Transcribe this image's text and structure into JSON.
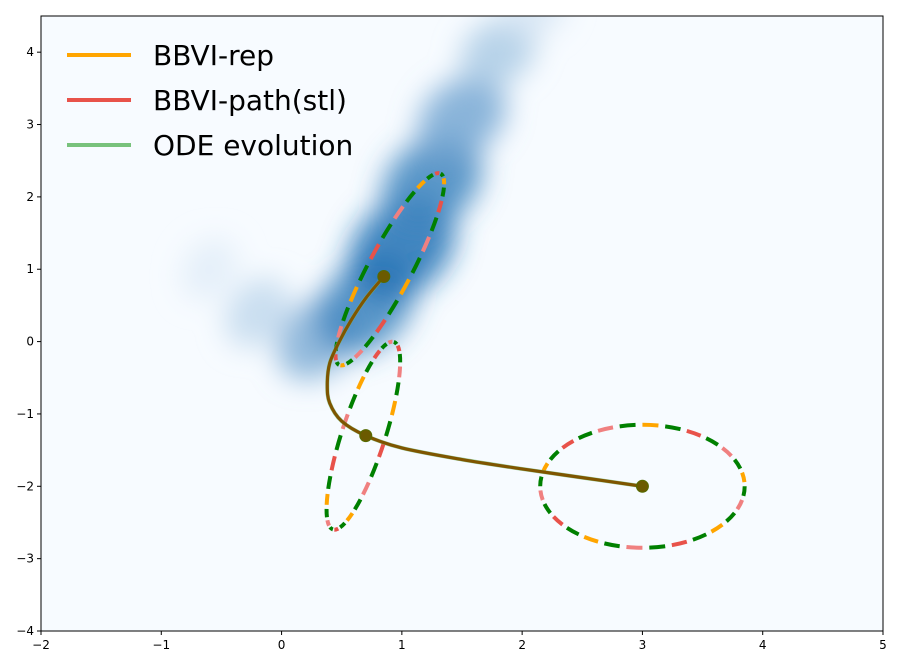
{
  "chart_data": {
    "type": "line",
    "title": "",
    "xlabel": "",
    "ylabel": "",
    "xlim": [
      -2.0,
      5.0
    ],
    "ylim": [
      -4.0,
      4.5
    ],
    "xticks": [
      -2,
      -1,
      0,
      1,
      2,
      3,
      4,
      5
    ],
    "yticks": [
      -4,
      -3,
      -2,
      -1,
      0,
      1,
      2,
      3,
      4
    ],
    "grid": false,
    "legend_position": "top-left",
    "background_density": {
      "description_shape": "banana-shaped 2D density, blue colormap",
      "colormap": "Blues",
      "ridge": [
        {
          "x": -0.6,
          "y": 1.0,
          "w": 0.1
        },
        {
          "x": -0.2,
          "y": 0.4,
          "w": 0.25
        },
        {
          "x": 0.3,
          "y": 0.05,
          "w": 0.55
        },
        {
          "x": 0.7,
          "y": 0.5,
          "w": 0.85
        },
        {
          "x": 1.0,
          "y": 1.3,
          "w": 1.0
        },
        {
          "x": 1.25,
          "y": 2.2,
          "w": 0.85
        },
        {
          "x": 1.5,
          "y": 3.1,
          "w": 0.6
        },
        {
          "x": 1.8,
          "y": 4.0,
          "w": 0.35
        },
        {
          "x": 2.1,
          "y": 4.6,
          "w": 0.15
        }
      ]
    },
    "series": [
      {
        "name": "BBVI-rep",
        "color": "#ffa500"
      },
      {
        "name": "BBVI-path(stl)",
        "color": "#e8524a"
      },
      {
        "name": "ODE evolution",
        "color": "#78c27c"
      }
    ],
    "trajectory": {
      "color": "#7f5500",
      "points": [
        {
          "x": 3.0,
          "y": -2.0
        },
        {
          "x": 2.5,
          "y": -1.88
        },
        {
          "x": 2.0,
          "y": -1.76
        },
        {
          "x": 1.5,
          "y": -1.63
        },
        {
          "x": 1.0,
          "y": -1.47
        },
        {
          "x": 0.7,
          "y": -1.3
        },
        {
          "x": 0.5,
          "y": -1.1
        },
        {
          "x": 0.4,
          "y": -0.85
        },
        {
          "x": 0.38,
          "y": -0.6
        },
        {
          "x": 0.4,
          "y": -0.3
        },
        {
          "x": 0.48,
          "y": 0.0
        },
        {
          "x": 0.58,
          "y": 0.3
        },
        {
          "x": 0.7,
          "y": 0.6
        },
        {
          "x": 0.85,
          "y": 0.9
        }
      ]
    },
    "markers": [
      {
        "x": 3.0,
        "y": -2.0
      },
      {
        "x": 0.7,
        "y": -1.3
      },
      {
        "x": 0.85,
        "y": 0.9
      }
    ],
    "ellipses": [
      {
        "cx": 3.0,
        "cy": -2.0,
        "rx": 0.85,
        "ry": 0.85,
        "angle": 0
      },
      {
        "cx": 0.68,
        "cy": -1.3,
        "rx": 0.82,
        "ry": 0.3,
        "angle": 72
      },
      {
        "cx": 0.9,
        "cy": 1.0,
        "rx": 0.9,
        "ry": 0.3,
        "angle": 62
      }
    ],
    "ellipse_dash_colors": [
      "#008000",
      "#ffa500",
      "#f08080",
      "#e8524a"
    ]
  }
}
